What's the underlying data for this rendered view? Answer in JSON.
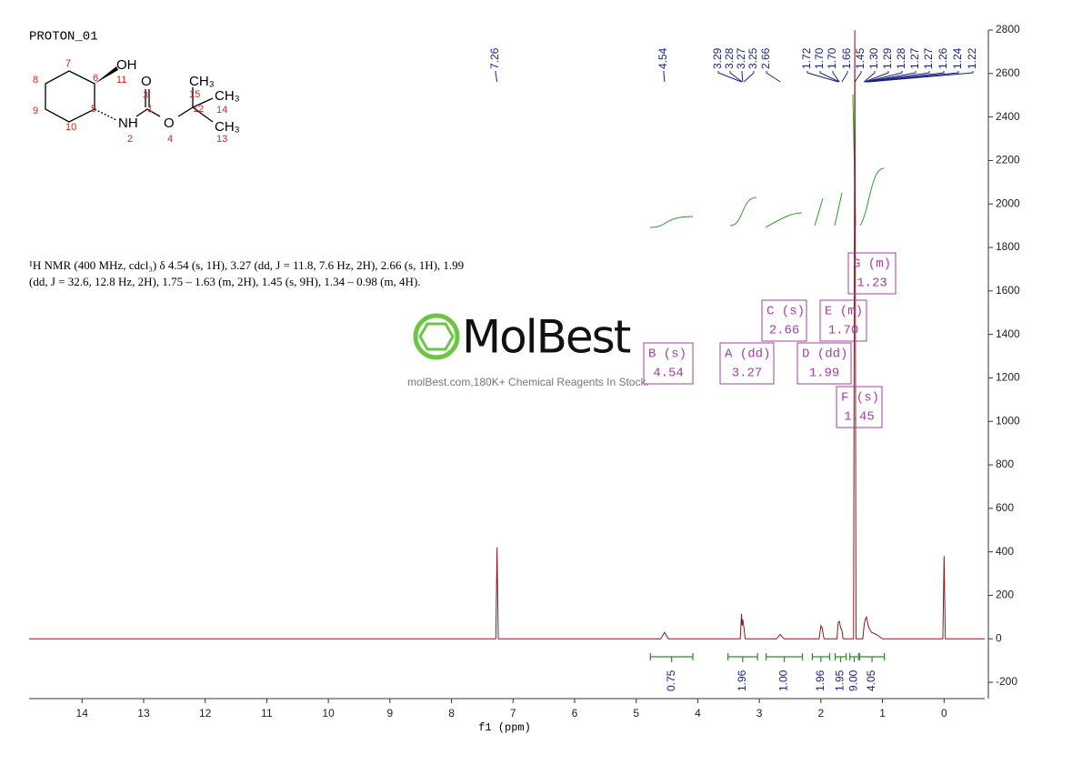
{
  "title": "PROTON_01",
  "structure": {
    "atoms": [
      "OH",
      "O",
      "CH₃",
      "CH₃",
      "CH₃",
      "NH",
      "O"
    ],
    "numbers": [
      "7",
      "6",
      "11",
      "8",
      "3",
      "15",
      "1",
      "12",
      "14",
      "9",
      "5",
      "10",
      "2",
      "4",
      "13"
    ]
  },
  "description": [
    "¹H NMR (400 MHz, cdcl₃) δ 4.54 (s, 1H), 3.27 (dd, J = 11.8, 7.6 Hz, 2H), 2.66 (s, 1H), 1.99",
    "(dd, J = 32.6, 12.8 Hz, 2H), 1.75 – 1.63 (m, 2H), 1.45 (s, 9H), 1.34 – 0.98 (m, 4H)."
  ],
  "watermark": {
    "brand": "MolBest",
    "tagline": "molBest.com,180K+ Chemical Reagents In Stock."
  },
  "chart_data": {
    "type": "line",
    "x_label": "f1 (ppm)",
    "x": [
      14.86,
      7.28,
      7.26,
      7.24,
      4.6,
      4.54,
      4.48,
      3.31,
      3.29,
      3.28,
      3.27,
      3.25,
      3.23,
      2.72,
      2.66,
      2.6,
      2.03,
      2.0,
      1.98,
      1.95,
      1.74,
      1.72,
      1.7,
      1.68,
      1.66,
      1.64,
      1.47,
      1.45,
      1.43,
      1.32,
      1.3,
      1.28,
      1.26,
      1.24,
      1.22,
      1.18,
      1.1,
      1.0,
      0.02,
      0,
      -0.02,
      -0.66
    ],
    "values": [
      0,
      0,
      420,
      0,
      0,
      30,
      0,
      0,
      115,
      60,
      90,
      50,
      0,
      0,
      20,
      0,
      0,
      60,
      50,
      0,
      0,
      75,
      80,
      50,
      40,
      0,
      0,
      2800,
      0,
      0,
      60,
      90,
      100,
      70,
      50,
      30,
      20,
      0,
      0,
      380,
      0,
      0
    ],
    "color": "#8b1a1a",
    "xlim": [
      14.86,
      -0.66
    ],
    "xticks": [
      14,
      13,
      12,
      11,
      10,
      9,
      8,
      7,
      6,
      5,
      4,
      3,
      2,
      1,
      0
    ],
    "ylim": [
      -275,
      2800
    ],
    "yticks": [
      -200,
      0,
      200,
      400,
      600,
      800,
      1000,
      1200,
      1400,
      1600,
      1800,
      2000,
      2200,
      2400,
      2600,
      2800
    ],
    "peak_labels": [
      "7.26",
      "4.54",
      "3.29",
      "3.28",
      "3.27",
      "3.25",
      "2.66",
      "1.72",
      "1.70",
      "1.70",
      "1.66",
      "1.45",
      "1.30",
      "1.29",
      "1.28",
      "1.27",
      "1.27",
      "1.26",
      "1.24",
      "1.22"
    ],
    "integrals": {
      "ranges": [
        [
          4.77,
          4.08
        ],
        [
          3.51,
          3.03
        ],
        [
          2.89,
          2.3
        ],
        [
          2.14,
          1.86
        ],
        [
          1.77,
          1.59
        ],
        [
          1.53,
          1.39
        ],
        [
          1.37,
          0.97
        ]
      ],
      "values": [
        0.75,
        1.96,
        1,
        1.96,
        1.95,
        9,
        4.05
      ],
      "value_labels": [
        "0.75",
        "1.96",
        "1.00",
        "1.96",
        "1.95",
        "9.00",
        "4.05"
      ],
      "color": "#2e8b2e"
    },
    "multiplets": [
      {
        "name": "B (s)",
        "shift": "4.54"
      },
      {
        "name": "A (dd)",
        "shift": "3.27"
      },
      {
        "name": "C (s)",
        "shift": "2.66"
      },
      {
        "name": "D (dd)",
        "shift": "1.99"
      },
      {
        "name": "E (m)",
        "shift": "1.70"
      },
      {
        "name": "F (s)",
        "shift": "1.45"
      },
      {
        "name": "G (m)",
        "shift": "1.23"
      }
    ]
  }
}
